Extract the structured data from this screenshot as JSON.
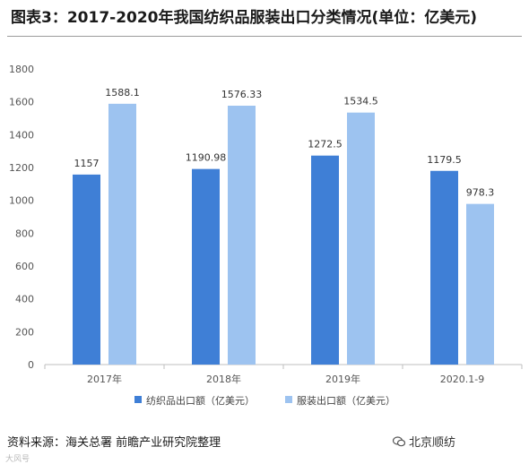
{
  "title": "图表3：2017-2020年我国纺织品服装出口分类情况(单位：亿美元)",
  "source": "资料来源：海关总署 前瞻产业研究院整理",
  "watermark_brand": "北京顺纺",
  "watermark_corner": "大风号",
  "watermark_icon": "wechat-icon",
  "chart_data": {
    "type": "bar",
    "categories": [
      "2017年",
      "2018年",
      "2019年",
      "2020.1-9"
    ],
    "series": [
      {
        "name": "纺织品出口额（亿美元）",
        "values": [
          1157,
          1190.98,
          1272.5,
          1179.5
        ],
        "labels": [
          "1157",
          "1190.98",
          "1272.5",
          "1179.5"
        ],
        "color": "#3f7fd6"
      },
      {
        "name": "服装出口额（亿美元）",
        "values": [
          1588.1,
          1576.33,
          1534.5,
          978.3
        ],
        "labels": [
          "1588.1",
          "1576.33",
          "1534.5",
          "978.3"
        ],
        "color": "#9dc3f0"
      }
    ],
    "yticks": [
      "0",
      "200",
      "400",
      "600",
      "800",
      "1000",
      "1200",
      "1400",
      "1600",
      "1800"
    ],
    "ylim": [
      0,
      1800
    ],
    "grid": false,
    "legend": "bottom"
  }
}
